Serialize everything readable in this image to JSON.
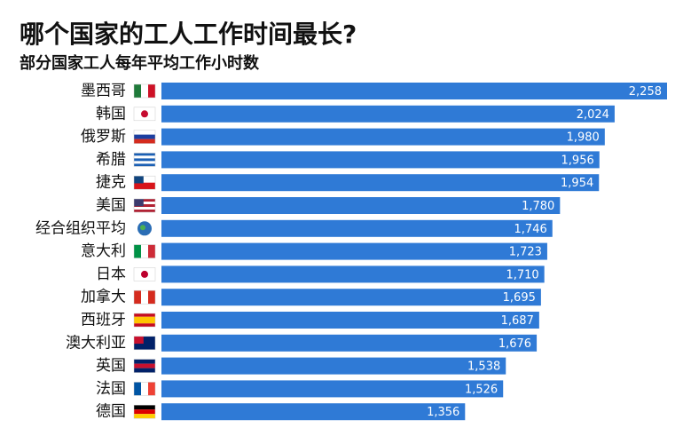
{
  "chart_data": {
    "type": "bar",
    "orientation": "horizontal",
    "title": "哪个国家的工人工作时间最长?",
    "subtitle": "部分国家工人每年平均工作小时数",
    "categories": [
      "墨西哥",
      "韩国",
      "俄罗斯",
      "希腊",
      "捷克",
      "美国",
      "经合组织平均",
      "意大利",
      "日本",
      "加拿大",
      "西班牙",
      "澳大利亚",
      "英国",
      "法国",
      "德国"
    ],
    "values": [
      2258,
      2024,
      1980,
      1956,
      1954,
      1780,
      1746,
      1723,
      1710,
      1695,
      1687,
      1676,
      1538,
      1526,
      1356
    ],
    "value_labels": [
      "2,258",
      "2,024",
      "1,980",
      "1,956",
      "1,954",
      "1,780",
      "1,746",
      "1,723",
      "1,710",
      "1,695",
      "1,687",
      "1,676",
      "1,538",
      "1,526",
      "1,356"
    ],
    "color": "#2f7ad6"
  }
}
